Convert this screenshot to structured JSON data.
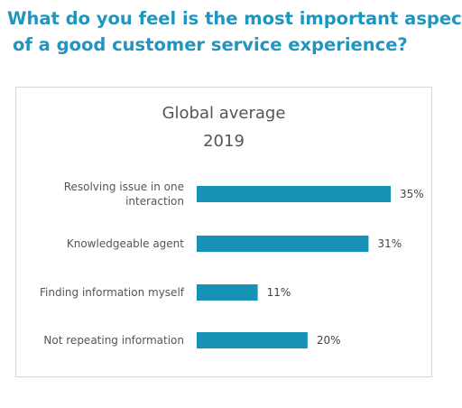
{
  "headline": {
    "line1": "What do you feel is the most important aspect",
    "line2": "of a good customer service experience?"
  },
  "chart_data": {
    "type": "bar",
    "orientation": "horizontal",
    "title": "Global average",
    "subtitle": "2019",
    "categories": [
      [
        "Resolving issue in one",
        "interaction"
      ],
      [
        "Knowledgeable agent"
      ],
      [
        "Finding information myself"
      ],
      [
        "Not repeating information"
      ]
    ],
    "values": [
      35,
      31,
      11,
      20
    ],
    "value_labels": [
      "35%",
      "31%",
      "11%",
      "20%"
    ],
    "unit": "%",
    "xlim": [
      0,
      35
    ],
    "grid": false,
    "legend": "none",
    "bar_color": "#1592b5"
  }
}
